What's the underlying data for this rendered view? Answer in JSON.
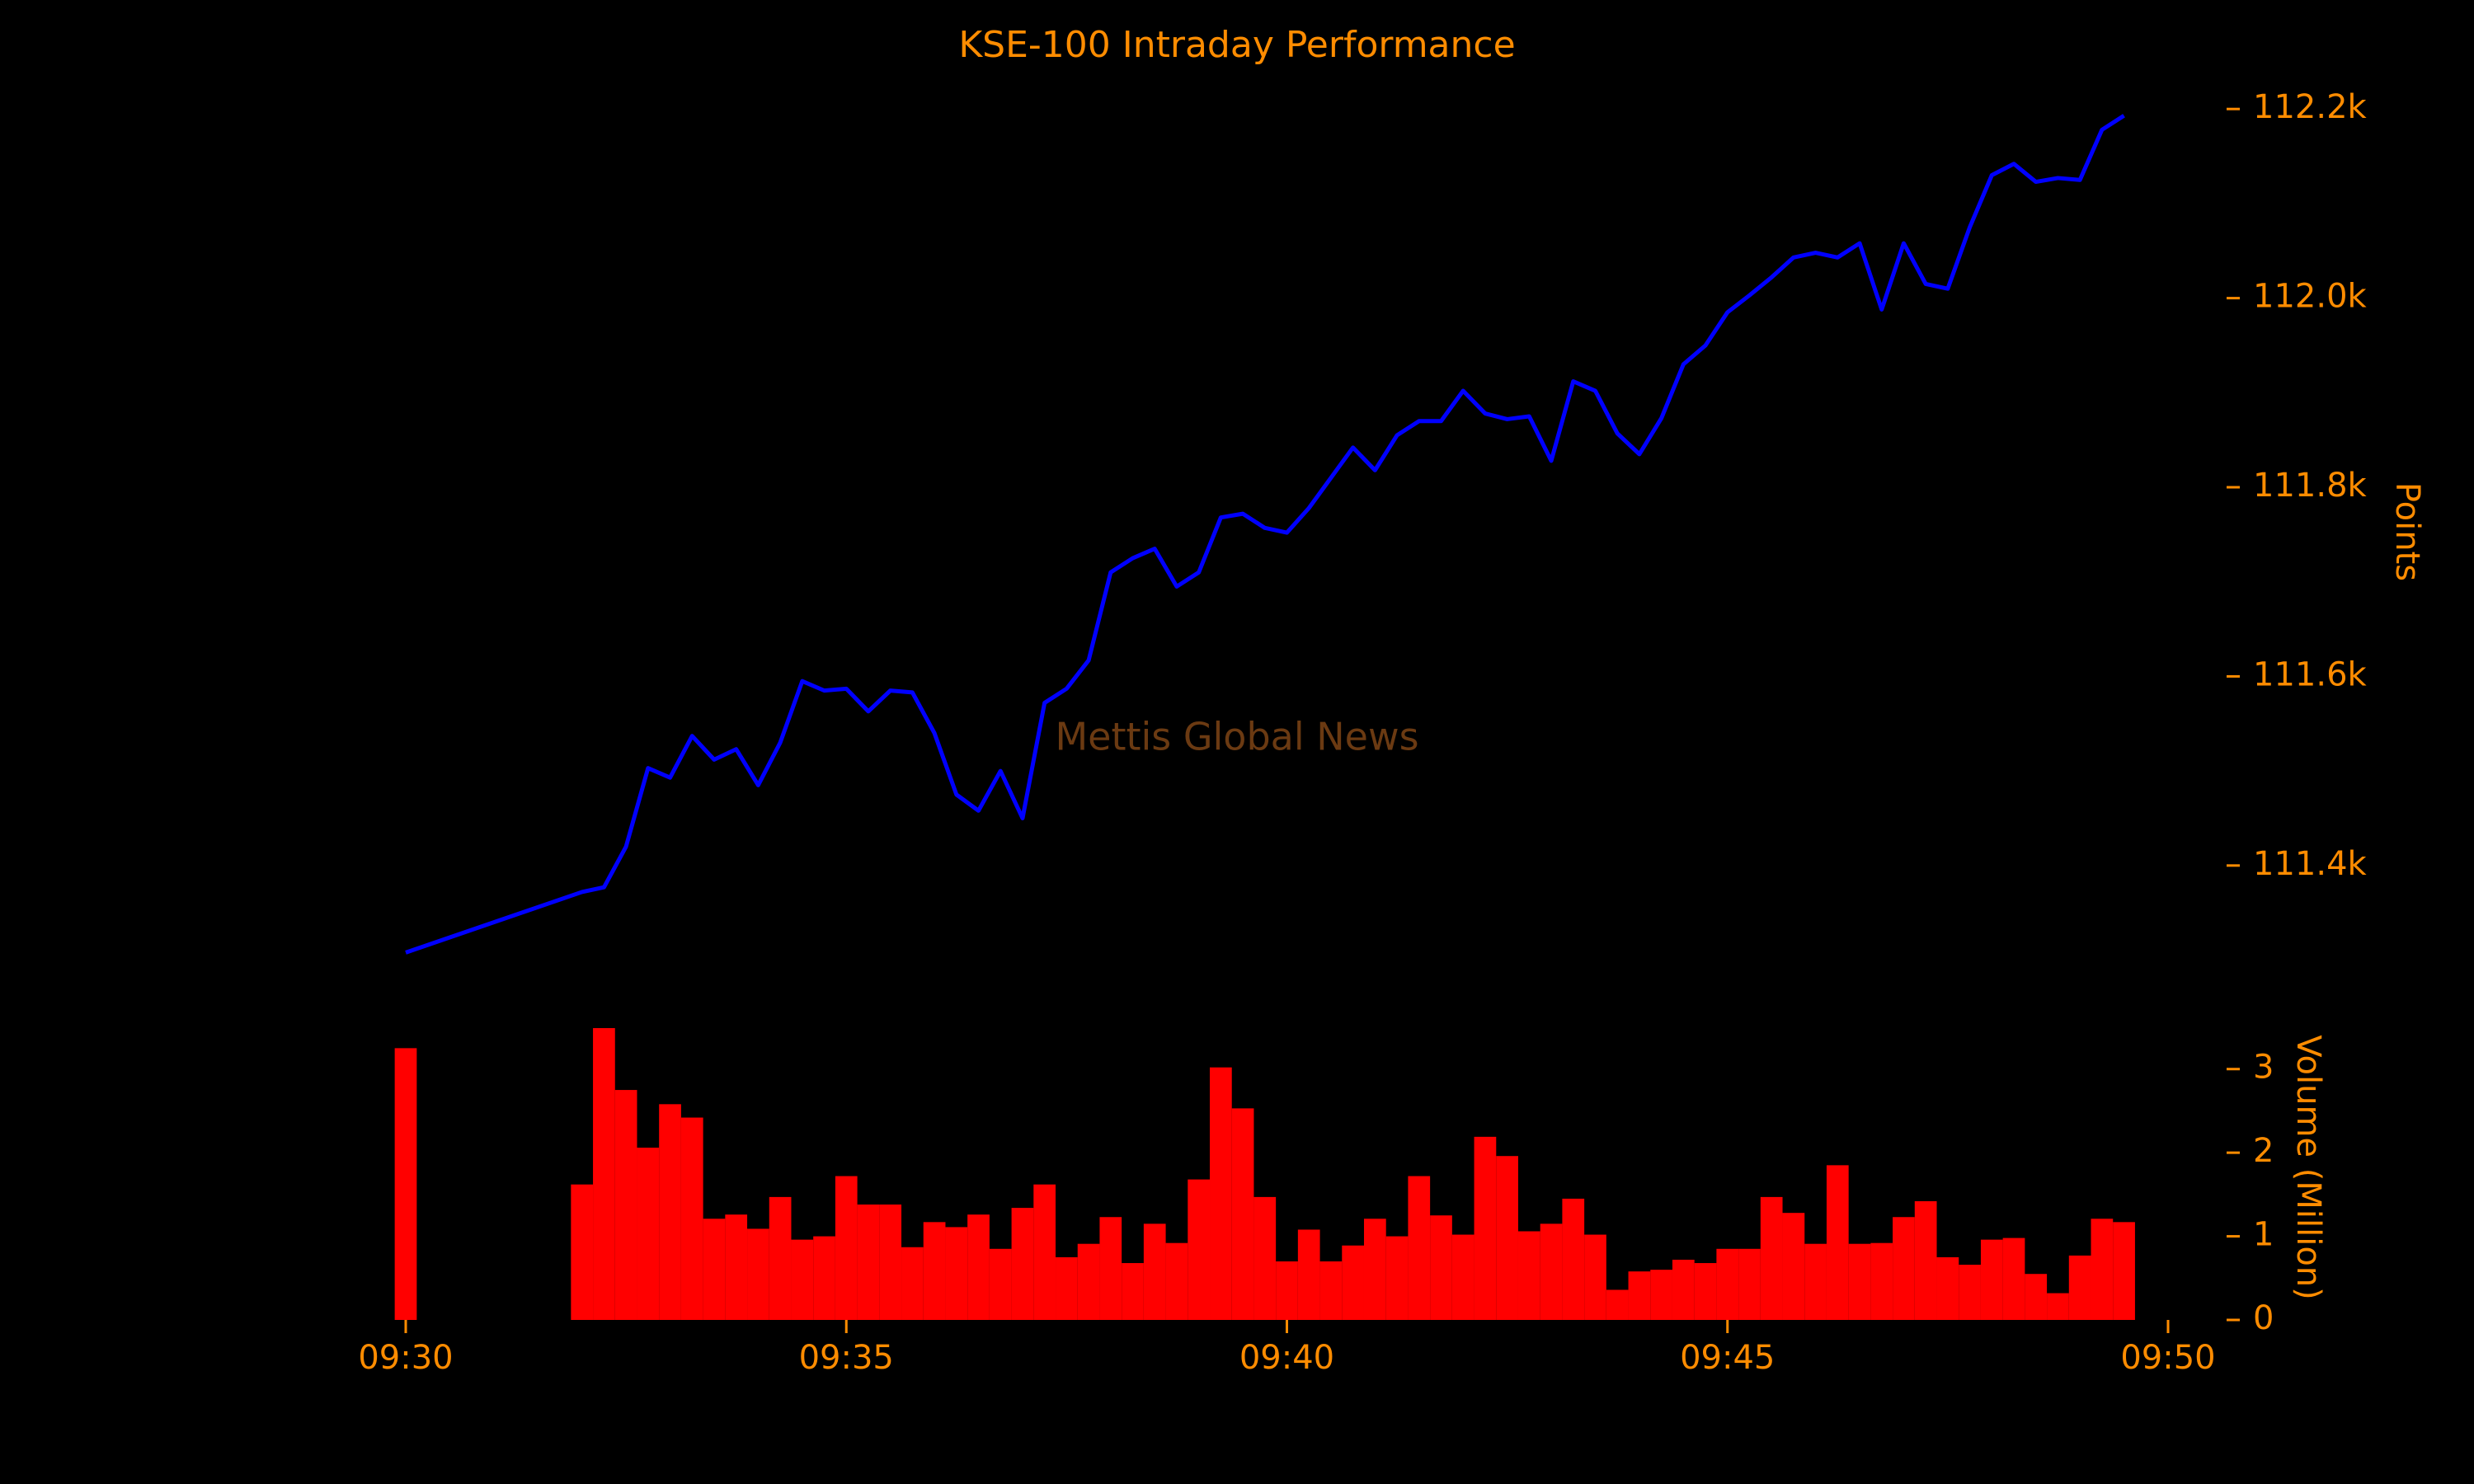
{
  "chart_data": [
    {
      "type": "line",
      "title": "KSE-100 Intraday Performance",
      "watermark": "Mettis Global News",
      "ylabel": "Points",
      "x": [
        "09:30:00",
        "09:32:00",
        "09:32:15",
        "09:32:30",
        "09:32:45",
        "09:33:00",
        "09:33:15",
        "09:33:30",
        "09:33:45",
        "09:34:00",
        "09:34:15",
        "09:34:30",
        "09:34:45",
        "09:35:00",
        "09:35:15",
        "09:35:30",
        "09:35:45",
        "09:36:00",
        "09:36:15",
        "09:36:30",
        "09:36:45",
        "09:37:00",
        "09:37:15",
        "09:37:30",
        "09:37:45",
        "09:38:00",
        "09:38:15",
        "09:38:30",
        "09:38:45",
        "09:39:00",
        "09:39:15",
        "09:39:30",
        "09:39:45",
        "09:40:00",
        "09:40:15",
        "09:40:30",
        "09:40:45",
        "09:41:00",
        "09:41:15",
        "09:41:30",
        "09:41:45",
        "09:42:00",
        "09:42:15",
        "09:42:30",
        "09:42:45",
        "09:43:00",
        "09:43:15",
        "09:43:30",
        "09:43:45",
        "09:44:00",
        "09:44:15",
        "09:44:30",
        "09:44:45",
        "09:45:00",
        "09:45:15",
        "09:45:30",
        "09:45:45",
        "09:46:00",
        "09:46:15",
        "09:46:30",
        "09:46:45",
        "09:47:00",
        "09:47:15",
        "09:47:30",
        "09:47:45",
        "09:48:00",
        "09:48:15",
        "09:48:30",
        "09:48:45",
        "09:49:00",
        "09:49:15",
        "09:49:30"
      ],
      "series": [
        {
          "name": "KSE-100",
          "color": "#0000ff",
          "values": [
            111308,
            111372,
            111377,
            111420,
            111503,
            111493,
            111537,
            111512,
            111523,
            111485,
            111530,
            111595,
            111585,
            111587,
            111563,
            111585,
            111583,
            111540,
            111475,
            111458,
            111500,
            111450,
            111572,
            111587,
            111617,
            111710,
            111725,
            111735,
            111695,
            111710,
            111768,
            111772,
            111757,
            111752,
            111778,
            111810,
            111842,
            111818,
            111855,
            111870,
            111870,
            111902,
            111878,
            111872,
            111875,
            111828,
            111912,
            111902,
            111857,
            111835,
            111873,
            111930,
            111950,
            111985,
            112003,
            112022,
            112043,
            112048,
            112043,
            112058,
            111988,
            112058,
            112015,
            112010,
            112075,
            112130,
            112142,
            112123,
            112127,
            112125,
            112178,
            112193
          ]
        }
      ],
      "xlim": [
        "09:30",
        "09:50"
      ],
      "ylim": [
        111290,
        112215
      ],
      "yticks": [
        {
          "value": 111400,
          "label": "111.4k"
        },
        {
          "value": 111600,
          "label": "111.6k"
        },
        {
          "value": 111800,
          "label": "111.8k"
        },
        {
          "value": 112000,
          "label": "112.0k"
        },
        {
          "value": 112200,
          "label": "112.2k"
        }
      ]
    },
    {
      "type": "bar",
      "ylabel": "Volume (Million)",
      "color": "#ff0000",
      "x": [
        "09:30:00",
        "09:32:00",
        "09:32:15",
        "09:32:30",
        "09:32:45",
        "09:33:00",
        "09:33:15",
        "09:33:30",
        "09:33:45",
        "09:34:00",
        "09:34:15",
        "09:34:30",
        "09:34:45",
        "09:35:00",
        "09:35:15",
        "09:35:30",
        "09:35:45",
        "09:36:00",
        "09:36:15",
        "09:36:30",
        "09:36:45",
        "09:37:00",
        "09:37:15",
        "09:37:30",
        "09:37:45",
        "09:38:00",
        "09:38:15",
        "09:38:30",
        "09:38:45",
        "09:39:00",
        "09:39:15",
        "09:39:30",
        "09:39:45",
        "09:40:00",
        "09:40:15",
        "09:40:30",
        "09:40:45",
        "09:41:00",
        "09:41:15",
        "09:41:30",
        "09:41:45",
        "09:42:00",
        "09:42:15",
        "09:42:30",
        "09:42:45",
        "09:43:00",
        "09:43:15",
        "09:43:30",
        "09:43:45",
        "09:44:00",
        "09:44:15",
        "09:44:30",
        "09:44:45",
        "09:45:00",
        "09:45:15",
        "09:45:30",
        "09:45:45",
        "09:46:00",
        "09:46:15",
        "09:46:30",
        "09:46:45",
        "09:47:00",
        "09:47:15",
        "09:47:30",
        "09:47:45",
        "09:48:00",
        "09:48:15",
        "09:48:30",
        "09:48:45",
        "09:49:00",
        "09:49:15",
        "09:49:30"
      ],
      "values": [
        3.25,
        1.62,
        3.49,
        2.75,
        2.06,
        2.58,
        2.42,
        1.21,
        1.26,
        1.09,
        1.47,
        0.96,
        1.0,
        1.72,
        1.38,
        1.38,
        0.87,
        1.17,
        1.11,
        1.26,
        0.85,
        1.34,
        1.62,
        0.75,
        0.91,
        1.23,
        0.68,
        1.15,
        0.92,
        1.68,
        3.02,
        2.53,
        1.47,
        0.7,
        1.08,
        0.7,
        0.89,
        1.21,
        1.0,
        1.72,
        1.25,
        1.02,
        2.19,
        1.96,
        1.06,
        1.15,
        1.45,
        1.02,
        0.36,
        0.58,
        0.6,
        0.72,
        0.68,
        0.85,
        0.85,
        1.47,
        1.28,
        0.91,
        1.85,
        0.91,
        0.92,
        1.23,
        1.42,
        0.75,
        0.66,
        0.96,
        0.98,
        0.55,
        0.32,
        0.77,
        1.21,
        1.17
      ],
      "xlim": [
        "09:30",
        "09:50"
      ],
      "xticks": [
        "09:30",
        "09:35",
        "09:40",
        "09:45",
        "09:50"
      ],
      "ylim": [
        0,
        3.5
      ],
      "yticks": [
        0,
        1,
        2,
        3
      ]
    }
  ]
}
